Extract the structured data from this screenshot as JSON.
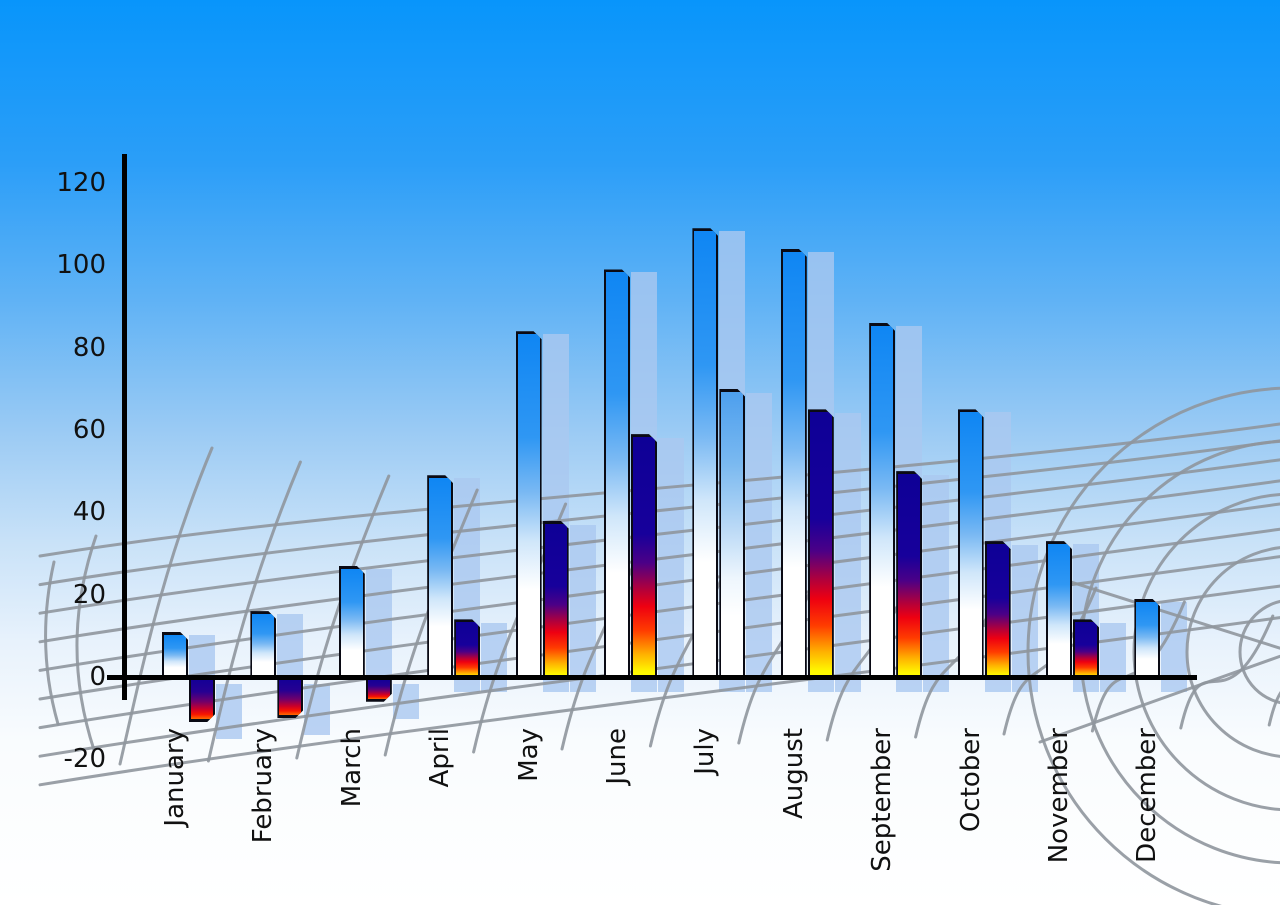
{
  "chart_data": {
    "type": "bar",
    "title": "",
    "xlabel": "",
    "ylabel": "",
    "legend": "none",
    "grid": "decorative curved gray perspective grid over sky-blue gradient background",
    "categories": [
      "January",
      "February",
      "March",
      "April",
      "May",
      "June",
      "July",
      "August",
      "September",
      "October",
      "November",
      "December"
    ],
    "series": [
      {
        "name": "blue-gradient-bars",
        "values": [
          11,
          16,
          27,
          49,
          84,
          99,
          109,
          104,
          86,
          65,
          33,
          19
        ]
      },
      {
        "name": "warm-gradient-bars",
        "values": [
          -11,
          -10,
          -6,
          14,
          38,
          59,
          70,
          65,
          50,
          33,
          14,
          null
        ]
      }
    ],
    "series2_render_style": [
      "warm",
      "warm",
      "warm",
      "warm",
      "warm",
      "warm",
      "blue-light",
      "warm",
      "warm",
      "warm",
      "warm",
      "none"
    ],
    "ylim": [
      -20,
      120
    ],
    "yticks": [
      120,
      100,
      80,
      60,
      40,
      20,
      0,
      -20
    ]
  },
  "colors": {
    "sky_top": "#0995fb",
    "sky_bottom": "#ffffff",
    "bar_blue_top": "#0f86f3",
    "bar_warm_navy": "#17009b",
    "bar_warm_red": "#ee0011",
    "bar_warm_yellow": "#fff800",
    "bar_shadow": "rgba(170,200,240,0.8)",
    "grid_line": "#8f969d",
    "axis": "#000000",
    "label_text": "#111111"
  }
}
